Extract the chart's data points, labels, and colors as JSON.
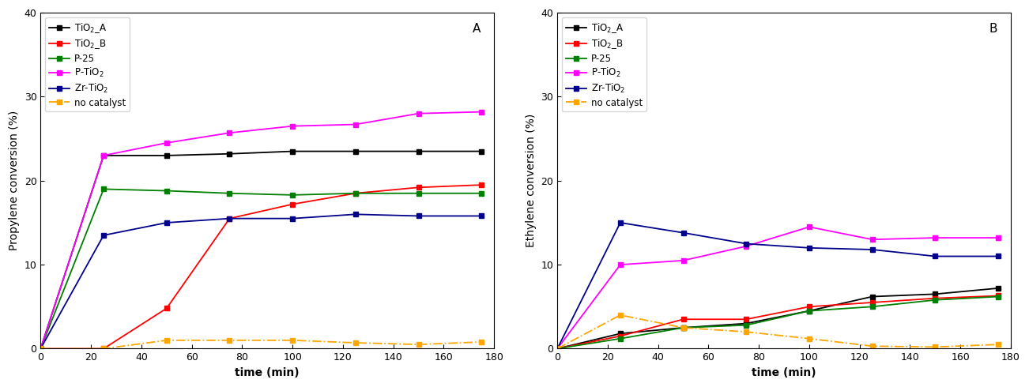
{
  "time_A": [
    0,
    25,
    50,
    75,
    100,
    125,
    150,
    175
  ],
  "propylene": {
    "TiO2_A": [
      0,
      23.0,
      23.0,
      23.2,
      23.5,
      23.5,
      23.5,
      23.5
    ],
    "TiO2_B": [
      0,
      0,
      4.8,
      15.5,
      17.2,
      18.5,
      19.2,
      19.5
    ],
    "P25": [
      0,
      19.0,
      18.8,
      18.5,
      18.3,
      18.5,
      18.5,
      18.5
    ],
    "PTiO2": [
      0,
      23.0,
      24.5,
      25.7,
      26.5,
      26.7,
      28.0,
      28.2
    ],
    "ZrTiO2": [
      0,
      13.5,
      15.0,
      15.5,
      15.5,
      16.0,
      15.8,
      15.8
    ],
    "no_cat": [
      0,
      0,
      1.0,
      1.0,
      1.0,
      0.7,
      0.5,
      0.8
    ]
  },
  "time_B": [
    0,
    25,
    50,
    75,
    100,
    125,
    150,
    175
  ],
  "ethylene": {
    "TiO2_A": [
      0,
      1.8,
      2.5,
      3.0,
      4.5,
      6.2,
      6.5,
      7.2
    ],
    "TiO2_B": [
      0,
      1.5,
      3.5,
      3.5,
      5.0,
      5.5,
      6.0,
      6.3
    ],
    "P25": [
      0,
      1.2,
      2.5,
      2.8,
      4.5,
      5.0,
      5.8,
      6.2
    ],
    "PTiO2": [
      0,
      10.0,
      10.5,
      12.2,
      14.5,
      13.0,
      13.2,
      13.2
    ],
    "ZrTiO2": [
      0,
      15.0,
      13.8,
      12.5,
      12.0,
      11.8,
      11.0,
      11.0
    ],
    "no_cat": [
      0,
      4.0,
      2.5,
      2.0,
      1.2,
      0.3,
      0.2,
      0.5
    ]
  },
  "colors": {
    "TiO2_A": "#000000",
    "TiO2_B": "#ff0000",
    "P25": "#008000",
    "PTiO2": "#ff00ff",
    "ZrTiO2": "#00008b",
    "no_cat": "#ffa500"
  },
  "legend_labels": {
    "TiO2_A": "TiO$_{2}$_A",
    "TiO2_B": "TiO$_{2}$_B",
    "P25": "P-25",
    "PTiO2": "P-TiO$_{2}$",
    "ZrTiO2": "Zr-TiO$_{2}$",
    "no_cat": "no catalyst"
  },
  "ylabel_A": "Propylene conversion (%)",
  "ylabel_B": "Ethylene conversion (%)",
  "xlabel": "time (min)",
  "ylim": [
    0,
    40
  ],
  "xlim": [
    0,
    180
  ],
  "yticks": [
    0,
    10,
    20,
    30,
    40
  ],
  "xticks": [
    0,
    20,
    40,
    60,
    80,
    100,
    120,
    140,
    160,
    180
  ],
  "label_A": "A",
  "label_B": "B",
  "figwidth": 13.02,
  "figheight": 4.9,
  "dpi": 100
}
